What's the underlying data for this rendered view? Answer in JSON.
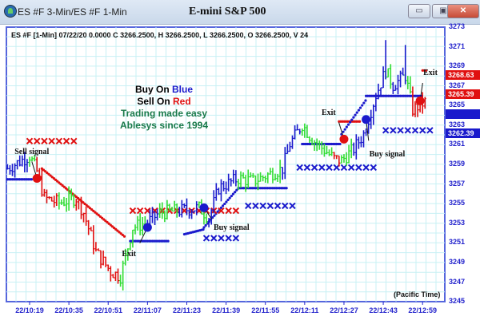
{
  "window": {
    "title": "ES #F 3-Min/ES #F 1-Min",
    "chart_title": "E-mini S&P 500",
    "buttons": [
      "minimize",
      "maximize",
      "close"
    ]
  },
  "info_line": "ES #F [1-Min] 07/22/20  0.0000 C 3266.2500, H 3266.2500, L 3266.2500, O 3266.2500, V 24",
  "legend": {
    "buy_prefix": "Buy On ",
    "buy_color_word": "Blue",
    "sell_prefix": "Sell On ",
    "sell_color_word": "Red",
    "line3": "Trading made easy",
    "line4": "Ablesys since 1994"
  },
  "timezone_label": "(Pacific Time)",
  "colors": {
    "up": "#1a1acc",
    "down": "#e01010",
    "neutral": "#33dd33",
    "grid": "#c8f0f4",
    "axis": "#2222cc",
    "slogan": "#1a7a4a"
  },
  "chart_data": {
    "type": "bar",
    "y_ticks": [
      "3273",
      "3271",
      "3269",
      "3267",
      "3265",
      "3263",
      "3261",
      "3259",
      "3257",
      "3255",
      "3253",
      "3251",
      "3249",
      "3247",
      "3245"
    ],
    "ylim": [
      3245,
      3273
    ],
    "x_ticks": [
      "22/10:19",
      "22/10:35",
      "22/10:51",
      "22/11:07",
      "22/11:23",
      "22/11:39",
      "22/11:55",
      "22/12:11",
      "22/12:27",
      "22/12:43",
      "22/12:59"
    ],
    "price_path": [
      [
        "10:10",
        3258.5,
        "blue"
      ],
      [
        "10:19",
        3259.8,
        "blue"
      ],
      [
        "10:22",
        3258.2,
        "green"
      ],
      [
        "10:25",
        3255.5,
        "red"
      ],
      [
        "10:31",
        3255,
        "red"
      ],
      [
        "10:38",
        3255.5,
        "green"
      ],
      [
        "10:41",
        3254,
        "red"
      ],
      [
        "10:46",
        3250,
        "red"
      ],
      [
        "10:52",
        3248,
        "red"
      ],
      [
        "10:56",
        3247.5,
        "red"
      ],
      [
        "11:01",
        3252.5,
        "green"
      ],
      [
        "11:07",
        3253,
        "green"
      ],
      [
        "11:12",
        3254,
        "blue"
      ],
      [
        "11:20",
        3254.2,
        "green"
      ],
      [
        "11:28",
        3254.5,
        "blue"
      ],
      [
        "11:32",
        3253.5,
        "green"
      ],
      [
        "11:36",
        3256.5,
        "blue"
      ],
      [
        "11:44",
        3257.5,
        "blue"
      ],
      [
        "11:50",
        3257.2,
        "green"
      ],
      [
        "12:02",
        3258.5,
        "green"
      ],
      [
        "12:05",
        3261,
        "blue"
      ],
      [
        "12:10",
        3263,
        "blue"
      ],
      [
        "12:14",
        3261.5,
        "green"
      ],
      [
        "12:23",
        3259.5,
        "green"
      ],
      [
        "12:26",
        3259.3,
        "red"
      ],
      [
        "12:31",
        3260.5,
        "green"
      ],
      [
        "12:35",
        3262,
        "blue"
      ],
      [
        "12:40",
        3266,
        "blue"
      ],
      [
        "12:44",
        3268.5,
        "blue"
      ],
      [
        "12:47",
        3267,
        "green"
      ],
      [
        "12:52",
        3268,
        "blue"
      ],
      [
        "12:55",
        3264.5,
        "green"
      ],
      [
        "12:58",
        3265,
        "red"
      ],
      [
        "13:01",
        3265.4,
        "red"
      ]
    ],
    "red_x_levels": [
      [
        "10:19",
        "10:38",
        3261.3
      ],
      [
        "11:01",
        "11:45",
        3254.2
      ]
    ],
    "blue_x_levels": [
      [
        "11:31",
        "11:45",
        3251.4
      ],
      [
        "11:48",
        "12:07",
        3254.7
      ],
      [
        "12:09",
        "12:41",
        3258.6
      ],
      [
        "12:44",
        "13:02",
        3262.4
      ]
    ],
    "red_stop_dots": [
      [
        "10:24",
        "10:58",
        3258.5,
        3251.5
      ],
      [
        "12:25",
        "12:34",
        3263.3,
        3263.3
      ],
      [
        "12:59",
        "13:01",
        3268.5,
        3268.5
      ]
    ],
    "blue_stop_dots": [
      [
        "10:10",
        "10:20",
        3257.4,
        3257.4
      ],
      [
        "11:00",
        "11:16",
        3251.1,
        3251.1
      ],
      [
        "11:22",
        "11:30",
        3251.8,
        3252.3
      ],
      [
        "11:30",
        "11:44",
        3252.5,
        3256.5
      ],
      [
        "11:44",
        "12:04",
        3256.5,
        3256.5
      ],
      [
        "12:10",
        "12:26",
        3261,
        3261
      ],
      [
        "12:26",
        "12:36",
        3262,
        3265.5
      ],
      [
        "12:36",
        "12:59",
        3265.9,
        3265.9
      ]
    ],
    "signals": [
      {
        "label": "Sell signal",
        "time": "10:22",
        "price": 3257.5,
        "color": "red"
      },
      {
        "label": "Exit",
        "time": "11:07",
        "price": 3252.5,
        "color": "blue"
      },
      {
        "label": "Buy signal",
        "time": "11:30",
        "price": 3254.5,
        "color": "blue"
      },
      {
        "label": "Exit",
        "time": "12:27",
        "price": 3261.5,
        "color": "red"
      },
      {
        "label": "Buy signal",
        "time": "12:36",
        "price": 3263.5,
        "color": "blue"
      },
      {
        "label": "Exit",
        "time": "12:58",
        "price": 3265.4,
        "color": "red"
      }
    ],
    "price_labels": [
      {
        "value": "3268.63",
        "color": "red"
      },
      {
        "value": "3265.39",
        "color": "red"
      },
      {
        "value": "3262.39",
        "color": "blue"
      }
    ]
  }
}
